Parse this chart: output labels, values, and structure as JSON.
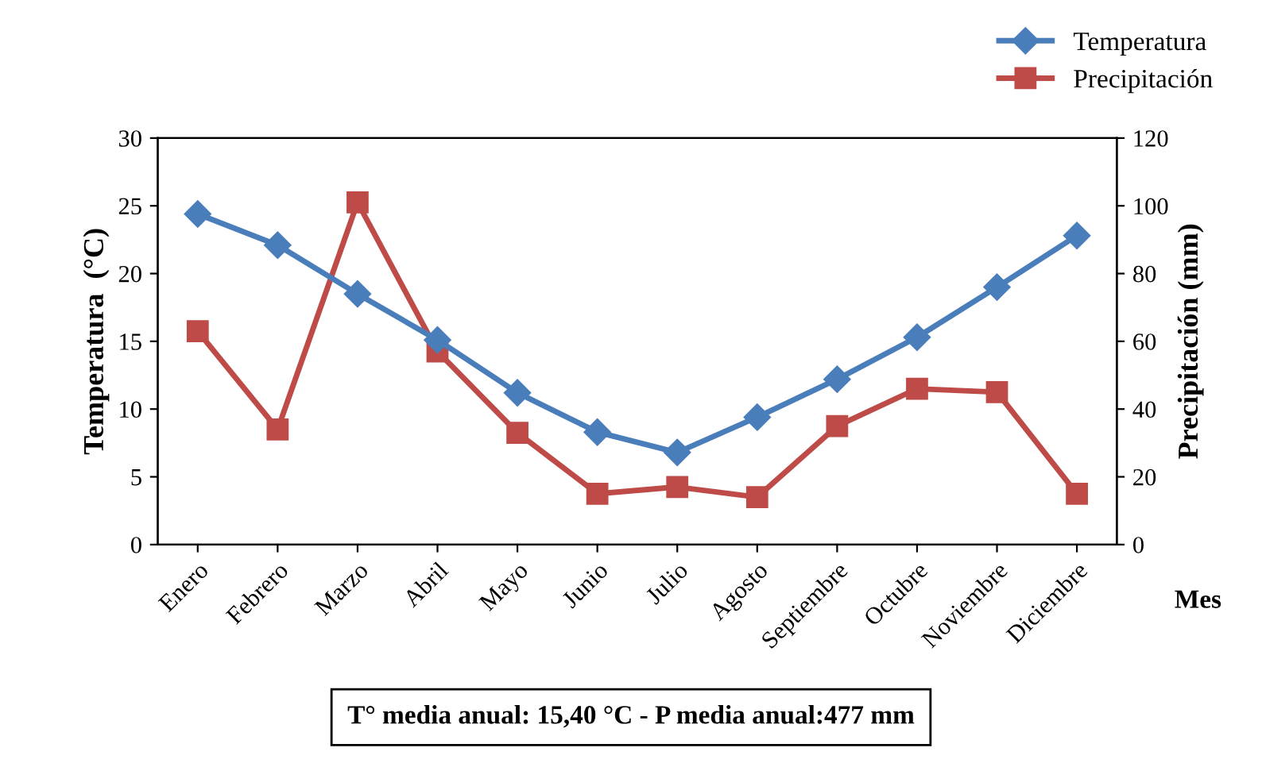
{
  "chart_data": {
    "type": "line",
    "categories": [
      "Enero",
      "Febrero",
      "Marzo",
      "Abril",
      "Mayo",
      "Junio",
      "Julio",
      "Agosto",
      "Septiembre",
      "Octubre",
      "Noviembre",
      "Diciembre"
    ],
    "series": [
      {
        "name": "Temperatura",
        "color": "#4a7ebb",
        "marker": "diamond",
        "values": [
          24.4,
          22.1,
          18.5,
          15.1,
          11.2,
          8.3,
          6.8,
          9.4,
          12.2,
          15.3,
          19.0,
          22.8
        ]
      },
      {
        "name": "Precipitación",
        "color": "#be4b48",
        "marker": "square",
        "axis": "y2",
        "values": [
          63,
          34,
          101,
          57,
          33,
          15,
          17,
          14,
          35,
          46,
          45,
          15
        ]
      }
    ],
    "ylabel": "Temperatura  (°C)",
    "y2label": "Precipitación (mm)",
    "xlabel": "Mes",
    "ylim": [
      0,
      30
    ],
    "yticks": [
      0,
      5,
      10,
      15,
      20,
      25,
      30
    ],
    "y2lim": [
      0,
      120
    ],
    "y2ticks": [
      0,
      20,
      40,
      60,
      80,
      100,
      120
    ],
    "grid": false,
    "legend": "top right",
    "line_style": "solid",
    "annotations": [
      "T° media anual: 15,40 °C - P media anual:477 mm"
    ]
  }
}
